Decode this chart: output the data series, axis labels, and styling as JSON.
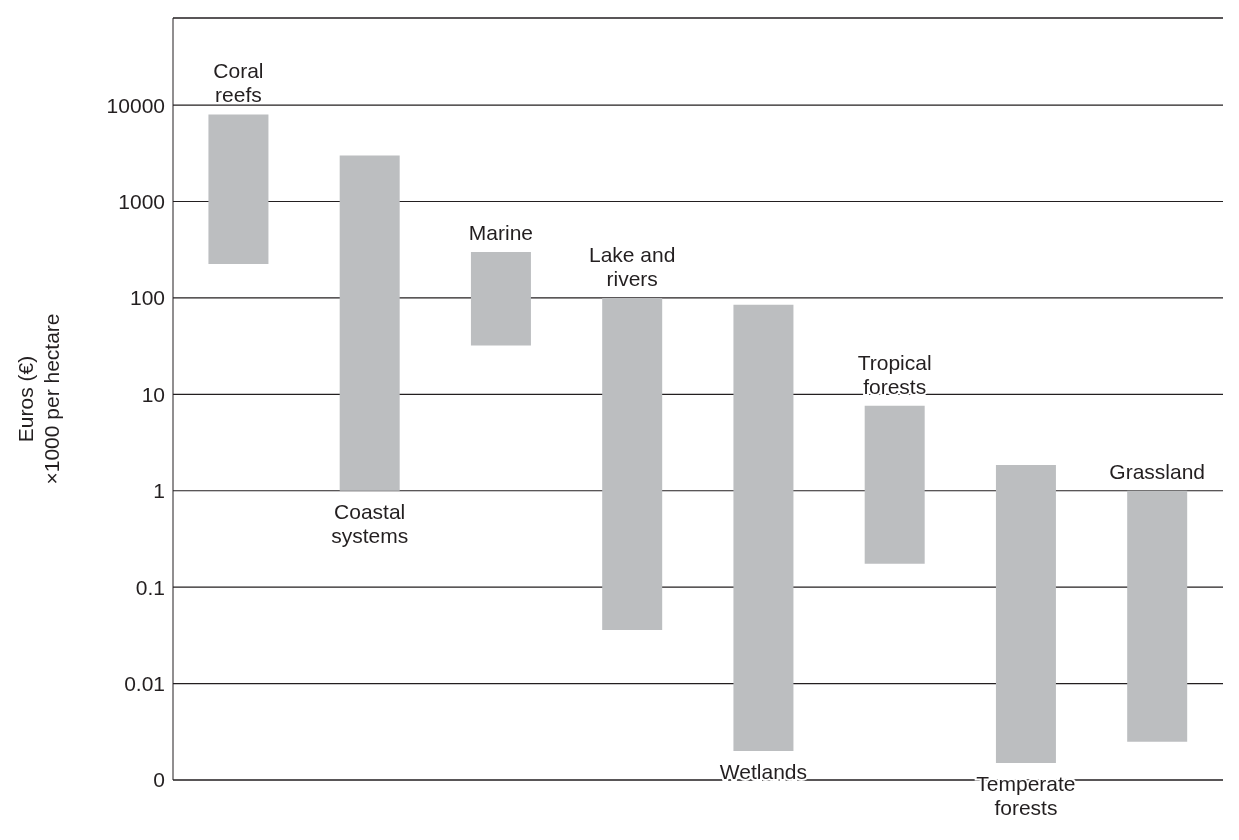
{
  "chart_data": {
    "type": "bar",
    "ylabel": "Euros (€)\n×1000 per hectare",
    "categories": [
      "Coral\nreefs",
      "Coastal\nsystems",
      "Marine",
      "Lake and\nrivers",
      "Wetlands",
      "Tropical\nforests",
      "Temperate\nforests",
      "Grassland"
    ],
    "base": [
      225,
      1,
      32,
      0.036,
      0.002,
      0.175,
      0.0015,
      0.0025
    ],
    "values": [
      7775,
      2999,
      268,
      99.964,
      84.998,
      7.425,
      1.8485,
      0.9975
    ],
    "color": "#bcbec0",
    "log": true,
    "ylim": [
      0.001,
      80000
    ],
    "yticks": [
      {
        "value": 0.001,
        "label": "0"
      },
      0.01,
      0.1,
      1,
      10,
      100,
      1000,
      10000
    ],
    "grid": "y",
    "tick_labels": "y"
  }
}
